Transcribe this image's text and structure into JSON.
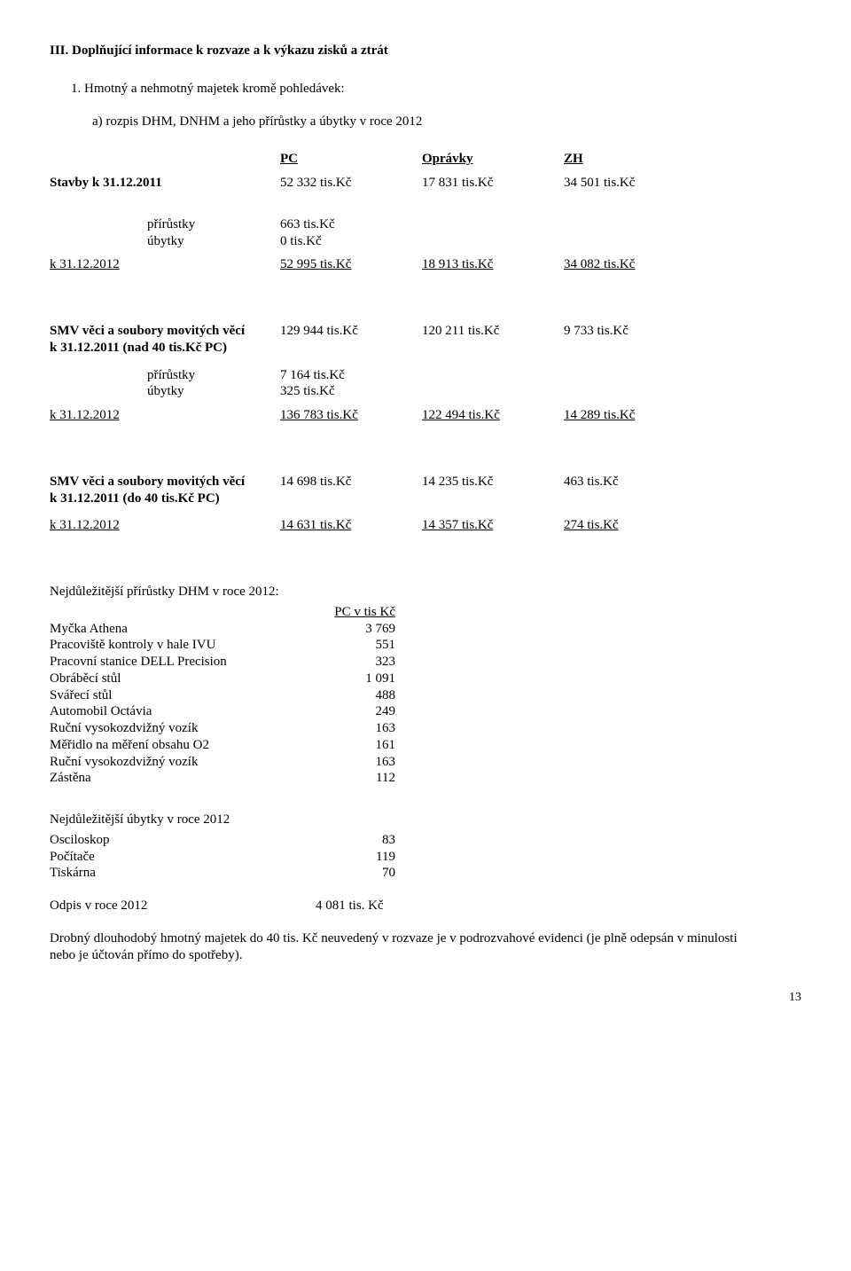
{
  "heading": "III.  Doplňující informace k rozvaze a k výkazu zisků a ztrát",
  "sub1": "1. Hmotný a nehmotný majetek kromě pohledávek:",
  "sub1a": "a)  rozpis DHM, DNHM a jeho přírůstky a úbytky v roce 2012",
  "colhdr": {
    "pc": "PC",
    "op": "Oprávky",
    "zh": "ZH"
  },
  "stavby": {
    "label": "Stavby k  31.12.2011",
    "pc": "52 332 tis.Kč",
    "op": "17 831 tis.Kč",
    "zh": "34 501 tis.Kč"
  },
  "stavby_pr": {
    "pr_label": "přírůstky",
    "pr_val": "663 tis.Kč",
    "ub_label": "úbytky",
    "ub_val": "0 tis.Kč"
  },
  "stavby_end": {
    "label": "k 31.12.2012",
    "pc": "52 995 tis.Kč",
    "op": "18 913 tis.Kč",
    "zh": "34 082 tis.Kč"
  },
  "smv40nad": {
    "label1": "SMV věci a soubory  movitých věcí",
    "label2": "k 31.12.2011 (nad 40 tis.Kč PC)",
    "pc": "129 944 tis.Kč",
    "op": "120 211 tis.Kč",
    "zh": "9 733 tis.Kč"
  },
  "smv40nad_pr": {
    "pr_label": "přírůstky",
    "pr_val": "7 164 tis.Kč",
    "ub_label": "úbytky",
    "ub_val": "325 tis.Kč"
  },
  "smv40nad_end": {
    "label": "k 31.12.2012",
    "pc": "136 783 tis.Kč",
    "op": "122 494 tis.Kč",
    "zh": "14 289 tis.Kč"
  },
  "smv40do": {
    "label1": "SMV věci a soubory  movitých věcí",
    "label2": "k 31.12.2011 (do 40 tis.Kč PC)",
    "pc": "14 698 tis.Kč",
    "op": "14 235 tis.Kč",
    "zh": "463 tis.Kč"
  },
  "smv40do_end": {
    "label": "k 31.12.2012",
    "pc": "14 631 tis.Kč",
    "op": "14 357  tis.Kč",
    "zh": "274 tis.Kč"
  },
  "nej_pr": {
    "title": "Nejdůležitější přírůstky DHM v roce 2012:",
    "colhdr": "PC v tis Kč",
    "rows": [
      {
        "lab": "Myčka Athena",
        "val": "3 769"
      },
      {
        "lab": "Pracoviště kontroly v hale IVU",
        "val": "551"
      },
      {
        "lab": "Pracovní stanice DELL Precision",
        "val": "323"
      },
      {
        "lab": "Obráběcí stůl",
        "val": "1 091"
      },
      {
        "lab": "Svářecí stůl",
        "val": "488"
      },
      {
        "lab": "Automobil Octávia",
        "val": "249"
      },
      {
        "lab": "Ruční vysokozdvižný vozík",
        "val": "163"
      },
      {
        "lab": "Měřidlo na měření obsahu O2",
        "val": "161"
      },
      {
        "lab": "Ruční vysokozdvižný vozík",
        "val": "163"
      },
      {
        "lab": "Zástěna",
        "val": "112"
      }
    ]
  },
  "nej_ub": {
    "title": "Nejdůležitější úbytky v roce 2012",
    "rows": [
      {
        "lab": "Osciloskop",
        "val": "83"
      },
      {
        "lab": "Počítače",
        "val": "119"
      },
      {
        "lab": "Tiskárna",
        "val": "70"
      }
    ]
  },
  "odpis": {
    "lab": "Odpis v roce 2012",
    "val": "4 081 tis. Kč"
  },
  "footnote": "Drobný dlouhodobý hmotný majetek do 40 tis. Kč neuvedený v rozvaze  je v podrozvahové evidenci (je plně odepsán v minulosti nebo je účtován přímo do spotřeby).",
  "page": "13"
}
